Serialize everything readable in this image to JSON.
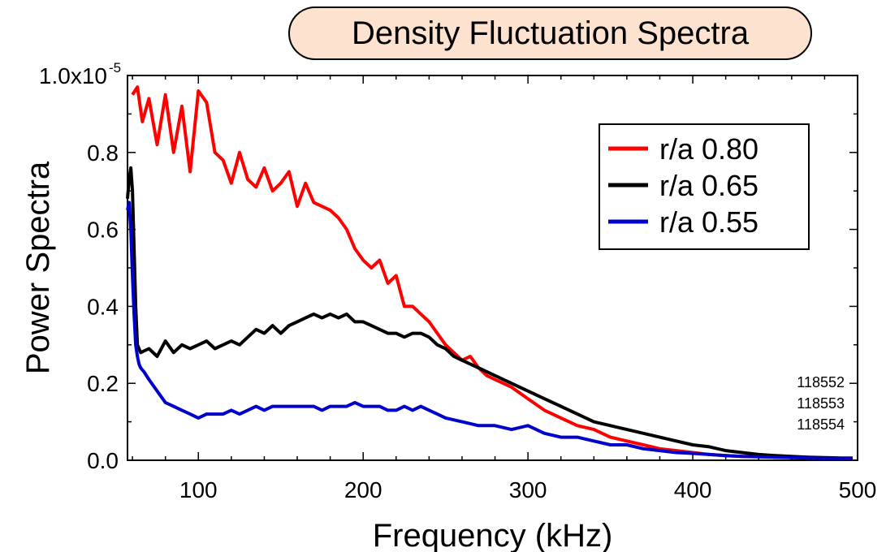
{
  "chart_data": {
    "type": "line",
    "title": "Density Fluctuation Spectra",
    "xlabel": "Frequency (kHz)",
    "ylabel": "Power Spectra",
    "xlim": [
      57,
      500
    ],
    "ylim": [
      0,
      1.0
    ],
    "y_exponent_label": "x10",
    "y_exponent": "-5",
    "xticks": [
      100,
      200,
      300,
      400,
      500
    ],
    "yticks": [
      "0.0",
      "0.2",
      "0.4",
      "0.6",
      "0.8",
      "1.0"
    ],
    "legend_position": "top-right",
    "annotations": [
      "118552",
      "118553",
      "118554"
    ],
    "series": [
      {
        "name": "r/a 0.80",
        "color": "#ff0000",
        "x": [
          60,
          63,
          66,
          70,
          75,
          80,
          85,
          90,
          95,
          100,
          105,
          110,
          115,
          120,
          125,
          130,
          135,
          140,
          145,
          150,
          155,
          160,
          165,
          170,
          175,
          180,
          185,
          190,
          195,
          200,
          205,
          210,
          215,
          220,
          225,
          230,
          235,
          240,
          245,
          250,
          255,
          260,
          265,
          270,
          275,
          280,
          285,
          290,
          300,
          310,
          320,
          330,
          340,
          350,
          360,
          370,
          380,
          390,
          400,
          410,
          420,
          430,
          440,
          450,
          460,
          470,
          480,
          490,
          497
        ],
        "y": [
          0.95,
          0.97,
          0.88,
          0.94,
          0.82,
          0.95,
          0.8,
          0.92,
          0.75,
          0.96,
          0.93,
          0.8,
          0.78,
          0.72,
          0.8,
          0.73,
          0.71,
          0.76,
          0.7,
          0.72,
          0.75,
          0.66,
          0.72,
          0.67,
          0.66,
          0.65,
          0.63,
          0.6,
          0.55,
          0.52,
          0.5,
          0.52,
          0.46,
          0.48,
          0.4,
          0.4,
          0.38,
          0.36,
          0.33,
          0.3,
          0.28,
          0.26,
          0.27,
          0.24,
          0.22,
          0.21,
          0.2,
          0.19,
          0.16,
          0.13,
          0.11,
          0.09,
          0.08,
          0.06,
          0.05,
          0.04,
          0.03,
          0.025,
          0.02,
          0.015,
          0.012,
          0.01,
          0.01,
          0.008,
          0.008,
          0.007,
          0.006,
          0.005,
          0.005
        ]
      },
      {
        "name": "r/a 0.65",
        "color": "#000000",
        "x": [
          57,
          58,
          59,
          60,
          61,
          62,
          63,
          65,
          70,
          75,
          80,
          85,
          90,
          95,
          100,
          105,
          110,
          115,
          120,
          125,
          130,
          135,
          140,
          145,
          150,
          155,
          160,
          165,
          170,
          175,
          180,
          185,
          190,
          195,
          200,
          205,
          210,
          215,
          220,
          225,
          230,
          235,
          240,
          245,
          250,
          255,
          260,
          270,
          280,
          290,
          300,
          310,
          320,
          330,
          340,
          350,
          360,
          370,
          380,
          390,
          400,
          410,
          420,
          430,
          440,
          450,
          460,
          470,
          480,
          490,
          497
        ],
        "y": [
          0.68,
          0.73,
          0.76,
          0.7,
          0.55,
          0.4,
          0.3,
          0.28,
          0.29,
          0.27,
          0.31,
          0.28,
          0.3,
          0.29,
          0.3,
          0.31,
          0.29,
          0.3,
          0.31,
          0.3,
          0.32,
          0.34,
          0.33,
          0.35,
          0.33,
          0.35,
          0.36,
          0.37,
          0.38,
          0.37,
          0.38,
          0.37,
          0.38,
          0.36,
          0.36,
          0.35,
          0.34,
          0.33,
          0.33,
          0.32,
          0.33,
          0.33,
          0.32,
          0.3,
          0.29,
          0.27,
          0.26,
          0.24,
          0.22,
          0.2,
          0.18,
          0.16,
          0.14,
          0.12,
          0.1,
          0.09,
          0.08,
          0.07,
          0.06,
          0.05,
          0.04,
          0.035,
          0.025,
          0.02,
          0.015,
          0.012,
          0.01,
          0.008,
          0.007,
          0.006,
          0.006
        ]
      },
      {
        "name": "r/a 0.55",
        "color": "#0000cc",
        "x": [
          57,
          58,
          59,
          60,
          61,
          62,
          63,
          64,
          65,
          67,
          70,
          75,
          80,
          85,
          90,
          95,
          100,
          105,
          110,
          115,
          120,
          125,
          130,
          135,
          140,
          145,
          150,
          155,
          160,
          165,
          170,
          175,
          180,
          185,
          190,
          195,
          200,
          205,
          210,
          215,
          220,
          225,
          230,
          235,
          240,
          245,
          250,
          260,
          270,
          280,
          290,
          300,
          310,
          320,
          330,
          340,
          350,
          360,
          370,
          380,
          390,
          400,
          410,
          420,
          430,
          440,
          450,
          460,
          470,
          480,
          490,
          497
        ],
        "y": [
          0.65,
          0.67,
          0.6,
          0.48,
          0.38,
          0.3,
          0.27,
          0.25,
          0.24,
          0.23,
          0.21,
          0.18,
          0.15,
          0.14,
          0.13,
          0.12,
          0.11,
          0.12,
          0.12,
          0.12,
          0.13,
          0.12,
          0.13,
          0.14,
          0.13,
          0.14,
          0.14,
          0.14,
          0.14,
          0.14,
          0.14,
          0.13,
          0.14,
          0.14,
          0.14,
          0.15,
          0.14,
          0.14,
          0.14,
          0.13,
          0.13,
          0.14,
          0.13,
          0.14,
          0.13,
          0.12,
          0.11,
          0.1,
          0.09,
          0.09,
          0.08,
          0.09,
          0.07,
          0.06,
          0.06,
          0.05,
          0.04,
          0.04,
          0.03,
          0.025,
          0.02,
          0.018,
          0.015,
          0.012,
          0.01,
          0.009,
          0.008,
          0.007,
          0.006,
          0.005,
          0.005,
          0.005
        ]
      }
    ]
  }
}
